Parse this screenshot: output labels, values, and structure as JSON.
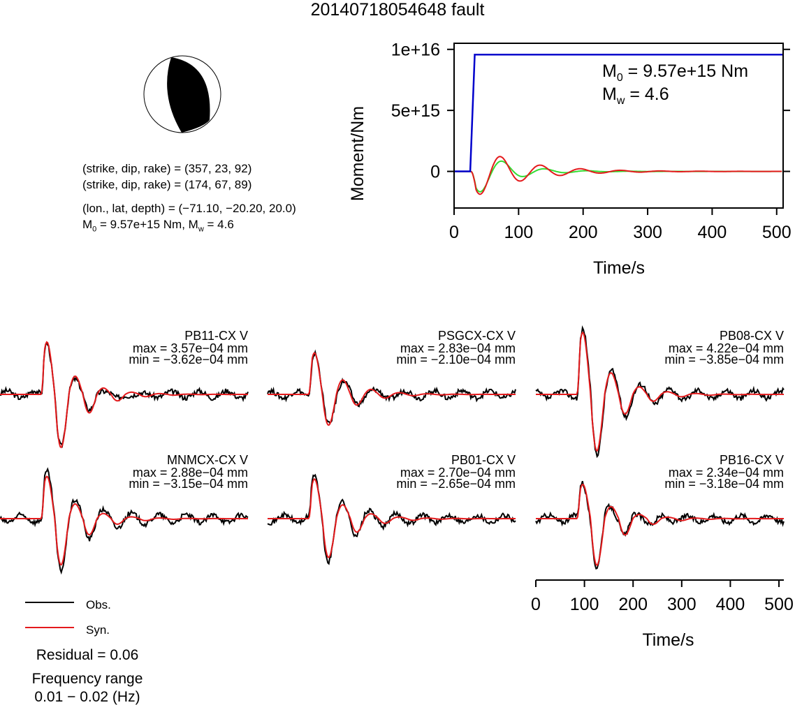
{
  "title": "20140718054648 fault",
  "mechanism": {
    "line1": "(strike, dip, rake) = (357, 23, 92)",
    "line2": "(strike, dip, rake) = (174, 67, 89)",
    "location": "(lon., lat, depth) = (−71.10, −20.20, 20.0)",
    "moment_prefix": "M",
    "moment_sub": "0",
    "moment_rest": " = 9.57e+15 Nm, M",
    "mw_sub": "w",
    "mw_rest": " = 4.6"
  },
  "colors": {
    "observed": "#000000",
    "synthetic": "#e41a1c",
    "moment": "#0000cc",
    "green_trace": "#33dd33",
    "beachball_fill": "#000000"
  },
  "stf_chart": {
    "type": "line",
    "xlabel": "Time/s",
    "ylabel": "Moment/Nm",
    "xlim": [
      0,
      510
    ],
    "ylim": [
      -3000000000000000.0,
      1.05e+16
    ],
    "xticks": [
      0,
      100,
      200,
      300,
      400,
      500
    ],
    "yticks": [
      {
        "value": 1e+16,
        "label": "1e+16"
      },
      {
        "value": 5000000000000000.0,
        "label": "5e+15"
      },
      {
        "value": 0,
        "label": "0"
      }
    ],
    "annotation_m0_prefix": "M",
    "annotation_m0_sub": "0",
    "annotation_m0_rest": " = 9.57e+15 Nm",
    "annotation_mw_prefix": "M",
    "annotation_mw_sub": "w",
    "annotation_mw_rest": " = 4.6",
    "moment_step": {
      "t0": 25,
      "t1": 32,
      "value": 9570000000000000.0
    }
  },
  "stations": [
    {
      "name": "PB11-CX V",
      "max": "max = 3.57e−04 mm",
      "min": "min = −3.62e−04 mm",
      "vmax": 3.57,
      "vmin": -3.62
    },
    {
      "name": "PSGCX-CX V",
      "max": "max = 2.83e−04 mm",
      "min": "min = −2.10e−04 mm",
      "vmax": 2.83,
      "vmin": -2.1
    },
    {
      "name": "PB08-CX V",
      "max": "max = 4.22e−04 mm",
      "min": "min = −3.85e−04 mm",
      "vmax": 4.22,
      "vmin": -3.85
    },
    {
      "name": "MNMCX-CX V",
      "max": "max = 2.88e−04 mm",
      "min": "min = −3.15e−04 mm",
      "vmax": 2.88,
      "vmin": -3.15
    },
    {
      "name": "PB01-CX V",
      "max": "max = 2.70e−04 mm",
      "min": "min = −2.65e−04 mm",
      "vmax": 2.7,
      "vmin": -2.65
    },
    {
      "name": "PB16-CX V",
      "max": "max = 2.34e−04 mm",
      "min": "min = −3.18e−04 mm",
      "vmax": 2.34,
      "vmin": -3.18
    }
  ],
  "wave_axis": {
    "xlabel": "Time/s",
    "xlim": [
      0,
      510
    ],
    "xticks": [
      0,
      100,
      200,
      300,
      400,
      500
    ]
  },
  "legend": {
    "obs": "Obs.",
    "syn": "Syn."
  },
  "residual": "Residual = 0.06",
  "freq_title": "Frequency range",
  "freq_value": "0.01 − 0.02 (Hz)"
}
